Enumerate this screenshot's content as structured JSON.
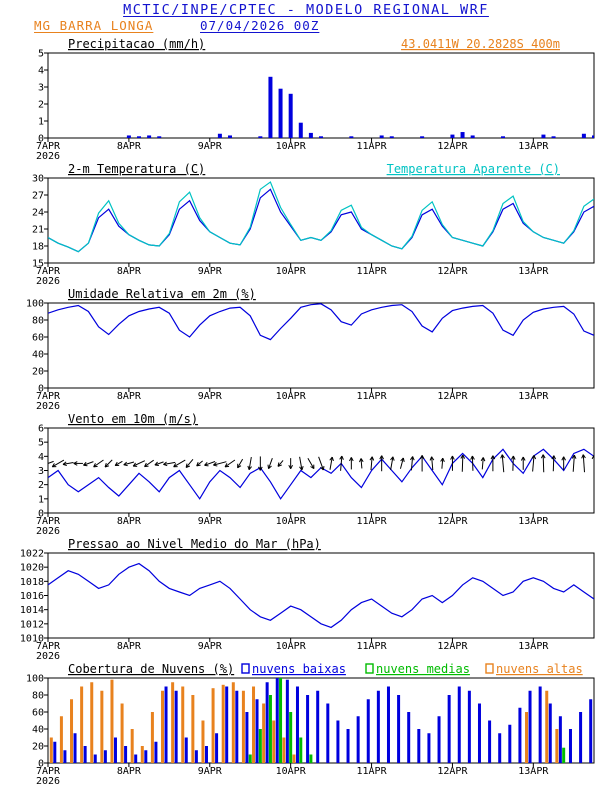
{
  "header": {
    "title": "MCTIC/INPE/CPTEC - MODELO REGIONAL WRF",
    "station": "MG BARRA LONGA",
    "run": "07/04/2026 00Z"
  },
  "colors": {
    "blue": "#0000dd",
    "cyan": "#00c3c3",
    "orange": "#e8821e",
    "green": "#00bb00",
    "black": "#000000",
    "header_blue": "#1313cf"
  },
  "chart_data": {
    "type": "meteogram",
    "x_axis": {
      "hours": [
        0,
        3,
        6,
        9,
        12,
        15,
        18,
        21,
        24,
        27,
        30,
        33,
        36,
        39,
        42,
        45,
        48,
        51,
        54,
        57,
        60,
        63,
        66,
        69,
        72,
        75,
        78,
        81,
        84,
        87,
        90,
        93,
        96,
        99,
        102,
        105,
        108,
        111,
        114,
        117,
        120,
        123,
        126,
        129,
        132,
        135,
        138,
        141,
        144,
        147,
        150,
        153,
        156,
        159,
        162
      ],
      "range_hours": [
        0,
        162
      ],
      "tick_hours": [
        0,
        24,
        48,
        72,
        96,
        120,
        144
      ],
      "tick_labels": [
        "7APR",
        "8APR",
        "9APR",
        "10APR",
        "11APR",
        "12APR",
        "13APR"
      ],
      "year_label": "2026"
    },
    "panels": [
      {
        "name": "precipitacao",
        "type": "bar",
        "title": "Precipitacao (mm/h)",
        "right_label": "43.0411W 20.2828S 400m",
        "right_label_color": "orange",
        "ylim": [
          0,
          5
        ],
        "yticks": [
          0,
          1,
          2,
          3,
          4,
          5
        ],
        "series": [
          {
            "name": "precipitacao",
            "color": "blue",
            "values": [
              0,
              0,
              0,
              0,
              0,
              0,
              0,
              0,
              0.15,
              0.1,
              0.15,
              0.1,
              0,
              0,
              0,
              0,
              0,
              0.25,
              0.15,
              0,
              0,
              0.1,
              3.6,
              2.9,
              2.6,
              0.9,
              0.3,
              0.1,
              0,
              0,
              0.1,
              0,
              0,
              0.15,
              0.1,
              0,
              0,
              0.1,
              0,
              0,
              0.2,
              0.35,
              0.15,
              0,
              0,
              0.1,
              0,
              0,
              0,
              0.2,
              0.1,
              0,
              0,
              0.25,
              0.15
            ]
          }
        ]
      },
      {
        "name": "temperatura-2m",
        "type": "line",
        "title": "2-m Temperatura (C)",
        "right_label": "Temperatura Aparente (C)",
        "right_label_color": "cyan",
        "ylim": [
          15,
          30
        ],
        "yticks": [
          15,
          18,
          21,
          24,
          27,
          30
        ],
        "series": [
          {
            "name": "temperatura-2m",
            "color": "blue",
            "values": [
              19.5,
              18.5,
              17.8,
              17.0,
              18.5,
              23.0,
              24.5,
              21.5,
              20.0,
              19.0,
              18.2,
              18.0,
              20.0,
              24.5,
              26.0,
              22.5,
              20.5,
              19.5,
              18.5,
              18.2,
              21.0,
              26.5,
              28.0,
              24.0,
              21.5,
              19.0,
              19.5,
              19.0,
              20.5,
              23.5,
              24.0,
              21.0,
              20.0,
              19.0,
              18.0,
              17.5,
              19.5,
              23.5,
              24.5,
              21.5,
              19.5,
              19.0,
              18.5,
              18.0,
              20.5,
              24.5,
              25.5,
              22.0,
              20.5,
              19.5,
              19.0,
              18.5,
              20.5,
              24.0,
              25.0
            ]
          },
          {
            "name": "temperatura-aparente",
            "color": "cyan",
            "values": [
              19.5,
              18.5,
              17.8,
              17.0,
              18.5,
              23.8,
              26.0,
              22.0,
              20.0,
              19.0,
              18.2,
              18.0,
              20.2,
              25.8,
              27.5,
              23.0,
              20.5,
              19.5,
              18.5,
              18.2,
              21.3,
              28.0,
              29.3,
              24.8,
              21.8,
              19.0,
              19.5,
              19.0,
              20.7,
              24.3,
              25.2,
              21.3,
              20.0,
              19.0,
              18.0,
              17.5,
              19.7,
              24.3,
              25.8,
              21.8,
              19.5,
              19.0,
              18.5,
              18.0,
              20.7,
              25.5,
              26.8,
              22.3,
              20.5,
              19.5,
              19.0,
              18.5,
              20.7,
              25.0,
              26.3
            ]
          }
        ]
      },
      {
        "name": "umidade-relativa",
        "type": "line",
        "title": "Umidade Relativa em 2m (%)",
        "ylim": [
          0,
          100
        ],
        "yticks": [
          0,
          20,
          40,
          60,
          80,
          100
        ],
        "series": [
          {
            "name": "umidade-relativa",
            "color": "blue",
            "values": [
              88,
              92,
              95,
              97,
              90,
              72,
              63,
              75,
              85,
              90,
              93,
              95,
              88,
              68,
              60,
              74,
              85,
              90,
              94,
              95,
              85,
              62,
              57,
              70,
              82,
              95,
              98,
              99,
              92,
              78,
              74,
              87,
              92,
              95,
              97,
              98,
              90,
              73,
              66,
              82,
              91,
              94,
              96,
              97,
              88,
              68,
              62,
              80,
              89,
              93,
              95,
              96,
              87,
              67,
              62
            ]
          }
        ]
      },
      {
        "name": "vento-10m",
        "type": "line",
        "title": "Vento em 10m (m/s)",
        "ylim": [
          0,
          6
        ],
        "yticks": [
          0,
          1,
          2,
          3,
          4,
          5,
          6
        ],
        "series": [
          {
            "name": "velocidade-vento",
            "color": "blue",
            "values": [
              2.5,
              3.0,
              2.0,
              1.5,
              2.0,
              2.5,
              1.8,
              1.2,
              2.0,
              2.8,
              2.2,
              1.5,
              2.5,
              3.0,
              2.0,
              1.0,
              2.2,
              3.0,
              2.5,
              1.8,
              2.8,
              3.2,
              2.2,
              1.0,
              2.0,
              3.0,
              2.5,
              3.2,
              2.8,
              3.5,
              2.5,
              1.8,
              3.0,
              3.8,
              3.0,
              2.2,
              3.2,
              4.0,
              3.0,
              2.0,
              3.5,
              4.2,
              3.5,
              2.5,
              3.8,
              4.5,
              3.5,
              2.8,
              4.0,
              4.5,
              3.8,
              3.0,
              4.2,
              4.5,
              4.0
            ]
          }
        ],
        "arrows": {
          "name": "direcao-vento",
          "color": "black",
          "center_value": 3.5,
          "directions_deg": [
            200,
            210,
            190,
            180,
            200,
            215,
            225,
            210,
            195,
            205,
            215,
            200,
            190,
            210,
            230,
            220,
            200,
            195,
            215,
            240,
            260,
            270,
            250,
            230,
            270,
            280,
            300,
            290,
            80,
            85,
            90,
            95,
            85,
            90,
            80,
            75,
            85,
            90,
            95,
            85,
            90,
            88,
            92,
            85,
            90,
            95,
            88,
            90,
            85,
            92,
            88,
            90,
            86,
            94,
            90
          ]
        }
      },
      {
        "name": "pressao-nmm",
        "type": "line",
        "title": "Pressao ao Nivel Medio do Mar (hPa)",
        "ylim": [
          1010,
          1022
        ],
        "yticks": [
          1010,
          1012,
          1014,
          1016,
          1018,
          1020,
          1022
        ],
        "series": [
          {
            "name": "pressao",
            "color": "blue",
            "values": [
              1017.5,
              1018.5,
              1019.5,
              1019.0,
              1018.0,
              1017.0,
              1017.5,
              1019.0,
              1020.0,
              1020.5,
              1019.5,
              1018.0,
              1017.0,
              1016.5,
              1016.0,
              1017.0,
              1017.5,
              1018.0,
              1017.0,
              1015.5,
              1014.0,
              1013.0,
              1012.5,
              1013.5,
              1014.5,
              1014.0,
              1013.0,
              1012.0,
              1011.5,
              1012.5,
              1014.0,
              1015.0,
              1015.5,
              1014.5,
              1013.5,
              1013.0,
              1014.0,
              1015.5,
              1016.0,
              1015.0,
              1016.0,
              1017.5,
              1018.5,
              1018.0,
              1017.0,
              1016.0,
              1016.5,
              1018.0,
              1018.5,
              1018.0,
              1017.0,
              1016.5,
              1017.5,
              1016.5,
              1015.5
            ]
          }
        ]
      },
      {
        "name": "cobertura-nuvens",
        "type": "bar-multi",
        "title": "Cobertura de Nuvens (%)",
        "legend": [
          {
            "label": "nuvens baixas",
            "color": "blue"
          },
          {
            "label": "nuvens medias",
            "color": "green"
          },
          {
            "label": "nuvens altas",
            "color": "orange"
          }
        ],
        "ylim": [
          0,
          100
        ],
        "yticks": [
          0,
          20,
          40,
          60,
          80,
          100
        ],
        "series": [
          {
            "name": "nuvens-baixas",
            "color": "blue",
            "values": [
              10,
              25,
              15,
              35,
              20,
              10,
              15,
              30,
              20,
              10,
              15,
              25,
              90,
              85,
              30,
              15,
              20,
              35,
              90,
              85,
              60,
              75,
              95,
              100,
              98,
              90,
              80,
              85,
              70,
              50,
              40,
              55,
              75,
              85,
              90,
              80,
              60,
              40,
              35,
              55,
              80,
              90,
              85,
              70,
              50,
              35,
              45,
              65,
              85,
              90,
              70,
              55,
              40,
              60,
              75
            ]
          },
          {
            "name": "nuvens-medias",
            "color": "green",
            "values": [
              0,
              0,
              0,
              0,
              0,
              0,
              0,
              0,
              0,
              0,
              0,
              0,
              0,
              0,
              0,
              0,
              0,
              0,
              0,
              0,
              10,
              40,
              80,
              100,
              60,
              30,
              10,
              0,
              0,
              0,
              0,
              0,
              0,
              0,
              0,
              0,
              0,
              0,
              0,
              0,
              0,
              0,
              0,
              0,
              0,
              0,
              0,
              0,
              0,
              0,
              0,
              18,
              0,
              0,
              0
            ]
          },
          {
            "name": "nuvens-altas",
            "color": "orange",
            "values": [
              30,
              55,
              75,
              90,
              95,
              85,
              98,
              70,
              40,
              20,
              60,
              85,
              95,
              90,
              80,
              50,
              88,
              92,
              95,
              85,
              90,
              70,
              50,
              30,
              10,
              0,
              0,
              0,
              0,
              0,
              0,
              0,
              0,
              0,
              0,
              0,
              0,
              0,
              0,
              0,
              0,
              0,
              0,
              0,
              0,
              0,
              0,
              60,
              0,
              85,
              40,
              0,
              0,
              0,
              0
            ]
          }
        ]
      }
    ]
  }
}
